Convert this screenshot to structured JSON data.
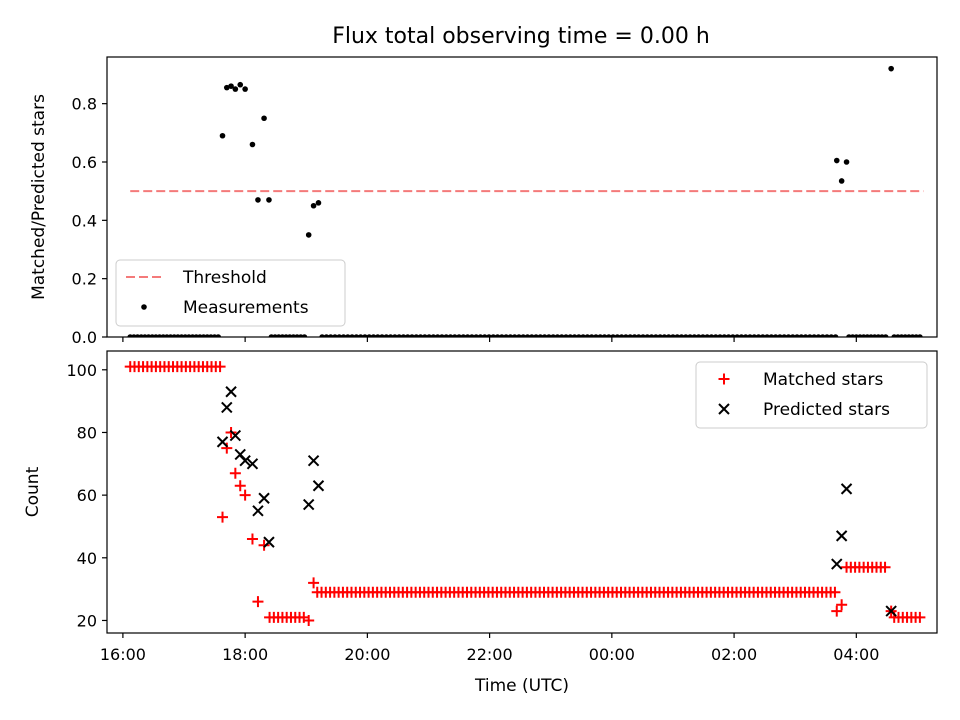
{
  "figure": {
    "title": "Flux total observing time = 0.00 h"
  },
  "chart_data": [
    {
      "type": "scatter",
      "title": "Flux total observing time = 0.00 h",
      "xlabel": "",
      "ylabel": "Matched/Predicted stars",
      "x_unit": "hours since 16:00 UTC",
      "xlim": [
        -0.26,
        13.32
      ],
      "ylim": [
        0.0,
        0.96
      ],
      "x_ticks": [
        0,
        2,
        4,
        6,
        8,
        10,
        12
      ],
      "x_tick_labels": [],
      "y_ticks": [
        0.0,
        0.2,
        0.4,
        0.6,
        0.8
      ],
      "y_tick_labels": [
        "0.0",
        "0.2",
        "0.4",
        "0.6",
        "0.8"
      ],
      "legend": {
        "position": "lower-left",
        "entries": [
          "Threshold",
          "Measurements"
        ]
      },
      "series": [
        {
          "name": "Threshold",
          "style": "dashed-line",
          "color": "#f47a7a",
          "x": [
            0.12,
            13.1
          ],
          "y": [
            0.5,
            0.5
          ]
        },
        {
          "name": "Measurements",
          "style": "dot",
          "color": "#000000",
          "points": [
            [
              1.63,
              0.69
            ],
            [
              1.7,
              0.855
            ],
            [
              1.77,
              0.86
            ],
            [
              1.84,
              0.85
            ],
            [
              1.92,
              0.865
            ],
            [
              2.0,
              0.85
            ],
            [
              2.12,
              0.66
            ],
            [
              2.21,
              0.47
            ],
            [
              2.31,
              0.75
            ],
            [
              2.39,
              0.47
            ],
            [
              3.04,
              0.35
            ],
            [
              3.12,
              0.45
            ],
            [
              3.2,
              0.46
            ],
            [
              11.68,
              0.605
            ],
            [
              11.76,
              0.535
            ],
            [
              11.84,
              0.6
            ],
            [
              12.57,
              0.92
            ]
          ],
          "zero_runs": [
            [
              0.12,
              1.6,
              0.06
            ],
            [
              2.43,
              2.98,
              0.06
            ],
            [
              3.26,
              11.66,
              0.07
            ],
            [
              11.88,
              12.5,
              0.06
            ],
            [
              12.62,
              13.05,
              0.06
            ]
          ]
        }
      ]
    },
    {
      "type": "scatter",
      "title": "",
      "xlabel": "Time (UTC)",
      "ylabel": "Count",
      "x_unit": "hours since 16:00 UTC",
      "xlim": [
        -0.26,
        13.32
      ],
      "ylim": [
        16,
        106
      ],
      "x_ticks": [
        0,
        2,
        4,
        6,
        8,
        10,
        12
      ],
      "x_tick_labels": [
        "16:00",
        "18:00",
        "20:00",
        "22:00",
        "00:00",
        "02:00",
        "04:00"
      ],
      "y_ticks": [
        20,
        40,
        60,
        80,
        100
      ],
      "y_tick_labels": [
        "20",
        "40",
        "60",
        "80",
        "100"
      ],
      "legend": {
        "position": "top-right",
        "entries": [
          "Matched stars",
          "Predicted stars"
        ]
      },
      "series": [
        {
          "name": "Matched stars",
          "marker": "plus",
          "color": "#ff0000",
          "points": [
            [
              1.63,
              53
            ],
            [
              1.7,
              75
            ],
            [
              1.77,
              80
            ],
            [
              1.84,
              67
            ],
            [
              1.92,
              63
            ],
            [
              2.0,
              60
            ],
            [
              2.12,
              46
            ],
            [
              2.21,
              26
            ],
            [
              2.31,
              44
            ],
            [
              3.04,
              20
            ],
            [
              3.12,
              32
            ],
            [
              11.68,
              23
            ],
            [
              11.76,
              25
            ],
            [
              12.57,
              23
            ]
          ],
          "runs": [
            [
              0.12,
              1.6,
              0.07,
              101
            ],
            [
              2.4,
              3.0,
              0.07,
              21
            ],
            [
              3.18,
              11.66,
              0.07,
              29
            ],
            [
              11.84,
              12.5,
              0.07,
              37
            ],
            [
              12.62,
              13.05,
              0.07,
              21
            ]
          ]
        },
        {
          "name": "Predicted stars",
          "marker": "x",
          "color": "#000000",
          "points": [
            [
              1.63,
              77
            ],
            [
              1.7,
              88
            ],
            [
              1.77,
              93
            ],
            [
              1.84,
              79
            ],
            [
              1.92,
              73
            ],
            [
              2.0,
              71
            ],
            [
              2.12,
              70
            ],
            [
              2.21,
              55
            ],
            [
              2.31,
              59
            ],
            [
              2.39,
              45
            ],
            [
              3.04,
              57
            ],
            [
              3.12,
              71
            ],
            [
              3.2,
              63
            ],
            [
              11.68,
              38
            ],
            [
              11.76,
              47
            ],
            [
              11.84,
              62
            ],
            [
              12.57,
              23
            ]
          ]
        }
      ]
    }
  ]
}
